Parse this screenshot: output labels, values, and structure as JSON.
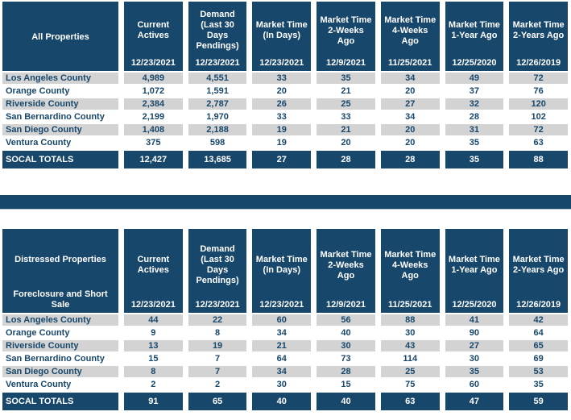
{
  "colors": {
    "header_navy": "#17476B",
    "row_gray": "#D3D3D3",
    "row_white": "#FFFFFF",
    "text_navy": "#17476B",
    "header_text": "#FFFFFF"
  },
  "columns": [
    {
      "label": "Current\nActives",
      "date": "12/23/2021"
    },
    {
      "label": "Demand\n(Last 30\nDays\nPendings)",
      "date": "12/23/2021"
    },
    {
      "label": "Market Time\n(In Days)",
      "date": "12/23/2021"
    },
    {
      "label": "Market Time\n2-Weeks\nAgo",
      "date": "12/9/2021"
    },
    {
      "label": "Market Time\n4-Weeks\nAgo",
      "date": "11/25/2021"
    },
    {
      "label": "Market Time\n1-Year Ago",
      "date": "12/25/2020"
    },
    {
      "label": "Market Time\n2-Years Ago",
      "date": "12/26/2019"
    }
  ],
  "tables": [
    {
      "title": "All Properties",
      "rows": [
        {
          "label": "Los Angeles County",
          "values": [
            "4,989",
            "4,551",
            "33",
            "35",
            "34",
            "49",
            "72"
          ]
        },
        {
          "label": "Orange County",
          "values": [
            "1,072",
            "1,591",
            "20",
            "21",
            "20",
            "37",
            "76"
          ]
        },
        {
          "label": "Riverside County",
          "values": [
            "2,384",
            "2,787",
            "26",
            "25",
            "27",
            "32",
            "120"
          ]
        },
        {
          "label": "San Bernardino County",
          "values": [
            "2,199",
            "1,970",
            "33",
            "33",
            "34",
            "28",
            "102"
          ]
        },
        {
          "label": "San Diego County",
          "values": [
            "1,408",
            "2,188",
            "19",
            "21",
            "20",
            "31",
            "72"
          ]
        },
        {
          "label": "Ventura County",
          "values": [
            "375",
            "598",
            "19",
            "20",
            "20",
            "35",
            "63"
          ]
        }
      ],
      "totals": {
        "label": "SOCAL TOTALS",
        "values": [
          "12,427",
          "13,685",
          "27",
          "28",
          "28",
          "35",
          "88"
        ]
      }
    },
    {
      "title": "Distressed Properties",
      "subtitle": "Foreclosure and Short\nSale",
      "rows": [
        {
          "label": "Los Angeles County",
          "values": [
            "44",
            "22",
            "60",
            "56",
            "88",
            "41",
            "42"
          ]
        },
        {
          "label": "Orange County",
          "values": [
            "9",
            "8",
            "34",
            "40",
            "30",
            "90",
            "64"
          ]
        },
        {
          "label": "Riverside County",
          "values": [
            "13",
            "19",
            "21",
            "30",
            "43",
            "27",
            "65"
          ]
        },
        {
          "label": "San Bernardino County",
          "values": [
            "15",
            "7",
            "64",
            "73",
            "114",
            "30",
            "69"
          ]
        },
        {
          "label": "San Diego County",
          "values": [
            "8",
            "7",
            "34",
            "28",
            "25",
            "35",
            "53"
          ]
        },
        {
          "label": "Ventura County",
          "values": [
            "2",
            "2",
            "30",
            "15",
            "75",
            "60",
            "35"
          ]
        }
      ],
      "totals": {
        "label": "SOCAL TOTALS",
        "values": [
          "91",
          "65",
          "40",
          "40",
          "63",
          "47",
          "59"
        ]
      }
    }
  ]
}
